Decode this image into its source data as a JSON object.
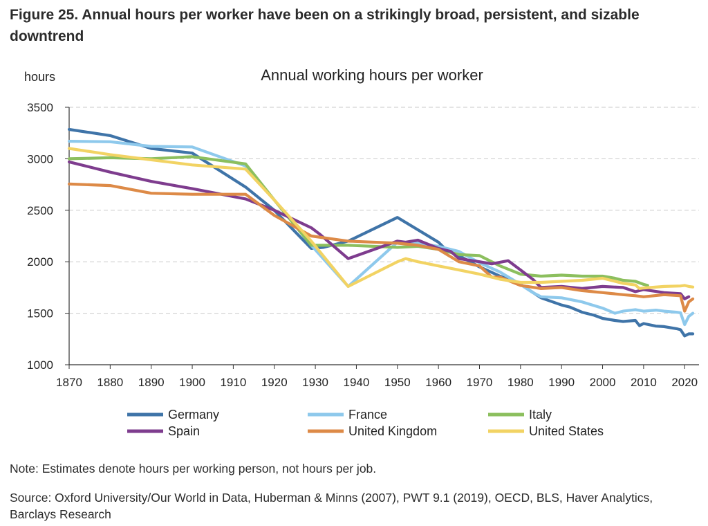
{
  "figure": {
    "title": "Figure 25. Annual hours per worker have been on a strikingly broad, persistent, and sizable downtrend",
    "note": "Note: Estimates denote hours per working person, not hours per job.",
    "source": "Source: Oxford University/Our World in Data, Huberman & Minns (2007), PWT 9.1 (2019), OECD, BLS, Haver Analytics, Barclays Research"
  },
  "chart_data": {
    "type": "line",
    "title": "Annual working hours per worker",
    "ylabel": "hours",
    "xlabel": "",
    "xlim": [
      1870,
      2023
    ],
    "ylim": [
      1000,
      3500
    ],
    "x_ticks": [
      1870,
      1880,
      1890,
      1900,
      1910,
      1920,
      1930,
      1940,
      1950,
      1960,
      1970,
      1980,
      1990,
      2000,
      2010,
      2020
    ],
    "y_ticks": [
      1000,
      1500,
      2000,
      2500,
      3000,
      3500
    ],
    "grid": "horizontal dashed",
    "legend_position": "bottom",
    "series": [
      {
        "name": "Germany",
        "color": "#3f74a8",
        "points": [
          [
            1870,
            3285
          ],
          [
            1880,
            3225
          ],
          [
            1890,
            3100
          ],
          [
            1900,
            3055
          ],
          [
            1913,
            2725
          ],
          [
            1920,
            2500
          ],
          [
            1929,
            2130
          ],
          [
            1932,
            2140
          ],
          [
            1938,
            2200
          ],
          [
            1950,
            2430
          ],
          [
            1960,
            2190
          ],
          [
            1962,
            2110
          ],
          [
            1965,
            2060
          ],
          [
            1970,
            1950
          ],
          [
            1975,
            1860
          ],
          [
            1980,
            1780
          ],
          [
            1985,
            1650
          ],
          [
            1990,
            1580
          ],
          [
            1992,
            1560
          ],
          [
            1995,
            1510
          ],
          [
            1998,
            1480
          ],
          [
            2000,
            1450
          ],
          [
            2003,
            1430
          ],
          [
            2005,
            1420
          ],
          [
            2008,
            1430
          ],
          [
            2009,
            1380
          ],
          [
            2010,
            1400
          ],
          [
            2013,
            1375
          ],
          [
            2015,
            1370
          ],
          [
            2018,
            1350
          ],
          [
            2019,
            1340
          ],
          [
            2020,
            1280
          ],
          [
            2021,
            1300
          ],
          [
            2022,
            1300
          ]
        ]
      },
      {
        "name": "France",
        "color": "#8ec9ec",
        "points": [
          [
            1870,
            3170
          ],
          [
            1880,
            3165
          ],
          [
            1890,
            3120
          ],
          [
            1900,
            3115
          ],
          [
            1913,
            2930
          ],
          [
            1920,
            2600
          ],
          [
            1929,
            2160
          ],
          [
            1938,
            1760
          ],
          [
            1950,
            2190
          ],
          [
            1955,
            2180
          ],
          [
            1960,
            2150
          ],
          [
            1965,
            2100
          ],
          [
            1970,
            1990
          ],
          [
            1975,
            1900
          ],
          [
            1980,
            1780
          ],
          [
            1983,
            1700
          ],
          [
            1985,
            1660
          ],
          [
            1990,
            1650
          ],
          [
            1995,
            1610
          ],
          [
            2000,
            1550
          ],
          [
            2003,
            1500
          ],
          [
            2005,
            1520
          ],
          [
            2008,
            1535
          ],
          [
            2010,
            1520
          ],
          [
            2013,
            1530
          ],
          [
            2015,
            1520
          ],
          [
            2018,
            1510
          ],
          [
            2019,
            1505
          ],
          [
            2020,
            1390
          ],
          [
            2021,
            1470
          ],
          [
            2022,
            1500
          ]
        ]
      },
      {
        "name": "Italy",
        "color": "#8cbf5e",
        "points": [
          [
            1870,
            3000
          ],
          [
            1880,
            3010
          ],
          [
            1890,
            3000
          ],
          [
            1900,
            3020
          ],
          [
            1913,
            2950
          ],
          [
            1920,
            2600
          ],
          [
            1929,
            2160
          ],
          [
            1938,
            2160
          ],
          [
            1950,
            2140
          ],
          [
            1955,
            2150
          ],
          [
            1960,
            2120
          ],
          [
            1965,
            2070
          ],
          [
            1970,
            2060
          ],
          [
            1975,
            1960
          ],
          [
            1980,
            1880
          ],
          [
            1985,
            1860
          ],
          [
            1990,
            1870
          ],
          [
            1995,
            1860
          ],
          [
            2000,
            1860
          ],
          [
            2003,
            1840
          ],
          [
            2005,
            1820
          ],
          [
            2008,
            1810
          ],
          [
            2010,
            1780
          ],
          [
            2011,
            1770
          ]
        ]
      },
      {
        "name": "Spain",
        "color": "#7e3c8e",
        "points": [
          [
            1870,
            2970
          ],
          [
            1880,
            2870
          ],
          [
            1890,
            2780
          ],
          [
            1900,
            2710
          ],
          [
            1913,
            2610
          ],
          [
            1920,
            2500
          ],
          [
            1929,
            2330
          ],
          [
            1931,
            2270
          ],
          [
            1938,
            2030
          ],
          [
            1950,
            2200
          ],
          [
            1952,
            2190
          ],
          [
            1955,
            2210
          ],
          [
            1960,
            2130
          ],
          [
            1963,
            2100
          ],
          [
            1965,
            2030
          ],
          [
            1970,
            2000
          ],
          [
            1973,
            1980
          ],
          [
            1977,
            2010
          ],
          [
            1980,
            1920
          ],
          [
            1983,
            1830
          ],
          [
            1985,
            1750
          ],
          [
            1990,
            1760
          ],
          [
            1995,
            1740
          ],
          [
            2000,
            1760
          ],
          [
            2005,
            1750
          ],
          [
            2008,
            1710
          ],
          [
            2010,
            1730
          ],
          [
            2015,
            1700
          ],
          [
            2019,
            1690
          ],
          [
            2020,
            1640
          ],
          [
            2021,
            1660
          ]
        ]
      },
      {
        "name": "United Kingdom",
        "color": "#dd8a47",
        "points": [
          [
            1870,
            2755
          ],
          [
            1880,
            2740
          ],
          [
            1890,
            2665
          ],
          [
            1900,
            2655
          ],
          [
            1913,
            2655
          ],
          [
            1920,
            2450
          ],
          [
            1929,
            2250
          ],
          [
            1938,
            2200
          ],
          [
            1950,
            2180
          ],
          [
            1955,
            2160
          ],
          [
            1960,
            2120
          ],
          [
            1965,
            2000
          ],
          [
            1970,
            1960
          ],
          [
            1973,
            1850
          ],
          [
            1975,
            1850
          ],
          [
            1980,
            1770
          ],
          [
            1985,
            1740
          ],
          [
            1990,
            1750
          ],
          [
            1995,
            1720
          ],
          [
            2000,
            1700
          ],
          [
            2005,
            1680
          ],
          [
            2008,
            1670
          ],
          [
            2010,
            1660
          ],
          [
            2015,
            1680
          ],
          [
            2019,
            1670
          ],
          [
            2020,
            1520
          ],
          [
            2021,
            1610
          ],
          [
            2022,
            1640
          ]
        ]
      },
      {
        "name": "United States",
        "color": "#f2d363",
        "points": [
          [
            1870,
            3100
          ],
          [
            1880,
            3040
          ],
          [
            1890,
            2990
          ],
          [
            1900,
            2940
          ],
          [
            1913,
            2900
          ],
          [
            1920,
            2600
          ],
          [
            1929,
            2200
          ],
          [
            1938,
            1760
          ],
          [
            1950,
            2000
          ],
          [
            1952,
            2030
          ],
          [
            1955,
            2000
          ],
          [
            1960,
            1960
          ],
          [
            1965,
            1920
          ],
          [
            1970,
            1880
          ],
          [
            1975,
            1830
          ],
          [
            1980,
            1800
          ],
          [
            1985,
            1800
          ],
          [
            1990,
            1810
          ],
          [
            1995,
            1820
          ],
          [
            2000,
            1840
          ],
          [
            2005,
            1790
          ],
          [
            2008,
            1775
          ],
          [
            2009,
            1740
          ],
          [
            2010,
            1745
          ],
          [
            2015,
            1760
          ],
          [
            2019,
            1765
          ],
          [
            2020,
            1770
          ],
          [
            2021,
            1760
          ],
          [
            2022,
            1755
          ]
        ]
      }
    ]
  }
}
